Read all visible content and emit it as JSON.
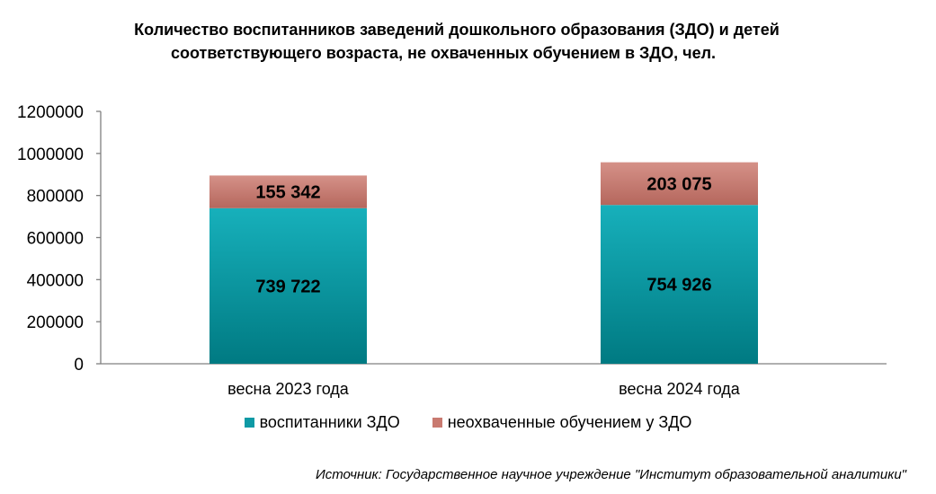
{
  "chart_data": {
    "type": "bar",
    "stacked": true,
    "title_lines": [
      "Количество воспитанников заведений дошкольного образования (ЗДО) и детей",
      "соответствующего возраста, не охваченных обучением в ЗДО, чел."
    ],
    "categories": [
      "весна 2023 года",
      "весна 2024 года"
    ],
    "series": [
      {
        "name": "воспитанники ЗДО",
        "values": [
          739722,
          754926
        ],
        "labels": [
          "739 722",
          "754 926"
        ],
        "color": "#0E9AA5"
      },
      {
        "name": "неохваченные обучением у ЗДО",
        "values": [
          155342,
          203075
        ],
        "labels": [
          "155 342",
          "203 075"
        ],
        "color": "#C97A70"
      }
    ],
    "ylim": [
      0,
      1200000
    ],
    "yticks": [
      "0",
      "200000",
      "400000",
      "600000",
      "800000",
      "1000000",
      "1200000"
    ],
    "grid": false,
    "legend": "bottom"
  },
  "source": "Источник: Государственное научное учреждение \"Институт образовательной аналитики\""
}
